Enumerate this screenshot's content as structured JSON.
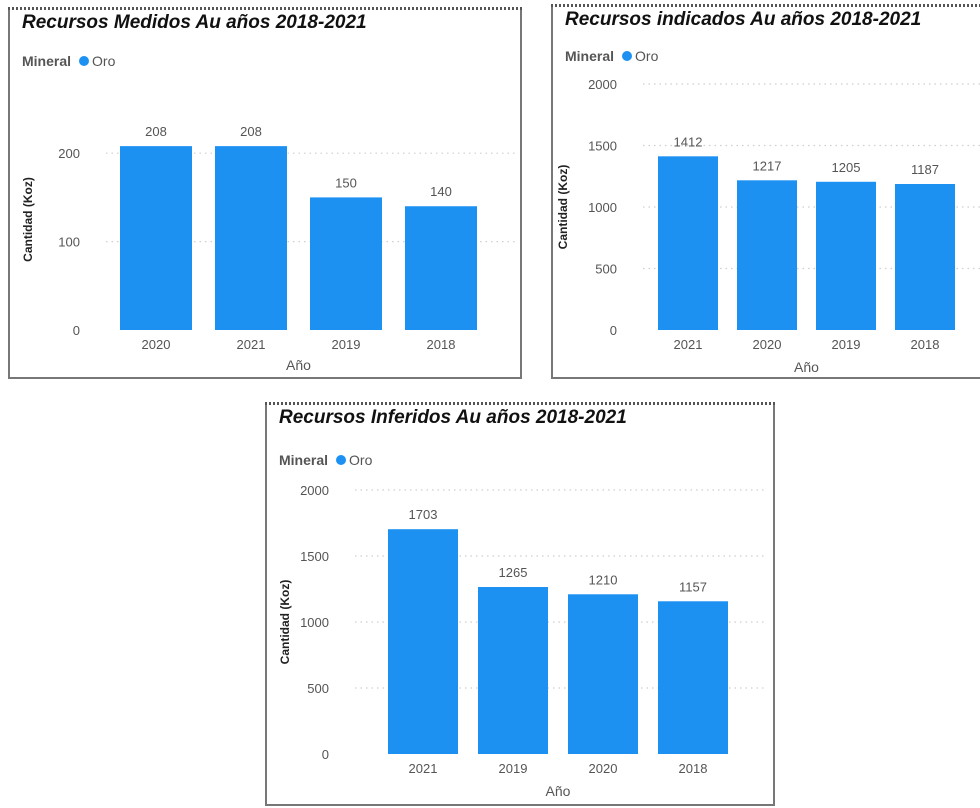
{
  "colors": {
    "bar": "#1d91f2",
    "grid": "#cfcfcf",
    "text": "#555555",
    "axis_title": "#222222"
  },
  "legend": {
    "title": "Mineral",
    "item": "Oro"
  },
  "chart_data": [
    {
      "type": "bar",
      "title": "Recursos Medidos Au años 2018-2021",
      "categories": [
        "2020",
        "2021",
        "2019",
        "2018"
      ],
      "series": [
        {
          "name": "Oro",
          "values": [
            208,
            208,
            150,
            140
          ]
        }
      ],
      "xlabel": "Año",
      "ylabel": "Cantidad (Koz)",
      "yticks": [
        0,
        100,
        200
      ],
      "ylim": [
        0,
        250
      ],
      "grid": true,
      "legend_position": "top-left"
    },
    {
      "type": "bar",
      "title": "Recursos indicados Au años 2018-2021",
      "categories": [
        "2021",
        "2020",
        "2019",
        "2018"
      ],
      "series": [
        {
          "name": "Oro",
          "values": [
            1412,
            1217,
            1205,
            1187
          ]
        }
      ],
      "xlabel": "Año",
      "ylabel": "Cantidad (Koz)",
      "yticks": [
        0,
        500,
        1000,
        1500,
        2000
      ],
      "ylim": [
        0,
        2000
      ],
      "grid": true,
      "legend_position": "top-left"
    },
    {
      "type": "bar",
      "title": "Recursos Inferidos Au años 2018-2021",
      "categories": [
        "2021",
        "2019",
        "2020",
        "2018"
      ],
      "series": [
        {
          "name": "Oro",
          "values": [
            1703,
            1265,
            1210,
            1157
          ]
        }
      ],
      "xlabel": "Año",
      "ylabel": "Cantidad (Koz)",
      "yticks": [
        0,
        500,
        1000,
        1500,
        2000
      ],
      "ylim": [
        0,
        2000
      ],
      "grid": true,
      "legend_position": "top-left"
    }
  ]
}
